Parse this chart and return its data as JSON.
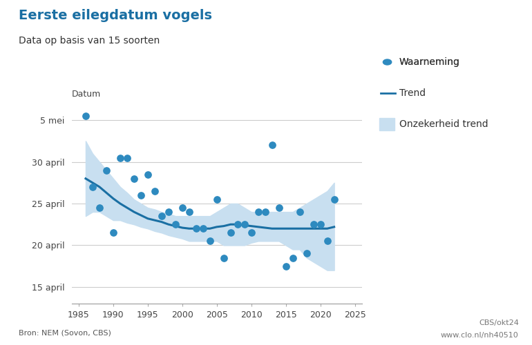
{
  "title": "Eerste eilegdatum vogels",
  "subtitle": "Data op basis van 15 soorten",
  "ylabel_label": "Datum",
  "source": "Bron: NEM (Sovon, CBS)",
  "source_right1": "CBS/okt24",
  "source_right2": "www.clo.nl/nh40510",
  "legend_labels": [
    "Waarneming",
    "Trend",
    "Onzekerheid trend"
  ],
  "dot_color": "#2e8abf",
  "trend_color": "#1a6fa3",
  "uncertainty_color": "#c8dff0",
  "ytick_labels": [
    "15 april",
    "20 april",
    "25 april",
    "30 april",
    "5 mei"
  ],
  "ytick_values": [
    15,
    20,
    25,
    30,
    35
  ],
  "xlim": [
    1984,
    2026
  ],
  "ylim": [
    13,
    37
  ],
  "observations": [
    [
      1986,
      35.5
    ],
    [
      1987,
      27.0
    ],
    [
      1988,
      24.5
    ],
    [
      1989,
      29.0
    ],
    [
      1990,
      21.5
    ],
    [
      1991,
      30.5
    ],
    [
      1992,
      30.5
    ],
    [
      1993,
      28.0
    ],
    [
      1994,
      26.0
    ],
    [
      1995,
      28.5
    ],
    [
      1996,
      26.5
    ],
    [
      1997,
      23.5
    ],
    [
      1998,
      24.0
    ],
    [
      1999,
      22.5
    ],
    [
      2000,
      24.5
    ],
    [
      2001,
      24.0
    ],
    [
      2002,
      22.0
    ],
    [
      2003,
      22.0
    ],
    [
      2004,
      20.5
    ],
    [
      2005,
      25.5
    ],
    [
      2006,
      18.5
    ],
    [
      2007,
      21.5
    ],
    [
      2008,
      22.5
    ],
    [
      2009,
      22.5
    ],
    [
      2010,
      21.5
    ],
    [
      2011,
      24.0
    ],
    [
      2012,
      24.0
    ],
    [
      2013,
      32.0
    ],
    [
      2014,
      24.5
    ],
    [
      2015,
      17.5
    ],
    [
      2016,
      18.5
    ],
    [
      2017,
      24.0
    ],
    [
      2018,
      19.0
    ],
    [
      2019,
      22.5
    ],
    [
      2020,
      22.5
    ],
    [
      2021,
      20.5
    ],
    [
      2022,
      25.5
    ]
  ],
  "trend": [
    [
      1986,
      28.0
    ],
    [
      1987,
      27.5
    ],
    [
      1988,
      27.0
    ],
    [
      1989,
      26.3
    ],
    [
      1990,
      25.6
    ],
    [
      1991,
      25.0
    ],
    [
      1992,
      24.5
    ],
    [
      1993,
      24.0
    ],
    [
      1994,
      23.6
    ],
    [
      1995,
      23.2
    ],
    [
      1996,
      23.0
    ],
    [
      1997,
      22.8
    ],
    [
      1998,
      22.5
    ],
    [
      1999,
      22.3
    ],
    [
      2000,
      22.1
    ],
    [
      2001,
      22.0
    ],
    [
      2002,
      22.0
    ],
    [
      2003,
      22.0
    ],
    [
      2004,
      22.0
    ],
    [
      2005,
      22.2
    ],
    [
      2006,
      22.3
    ],
    [
      2007,
      22.5
    ],
    [
      2008,
      22.5
    ],
    [
      2009,
      22.4
    ],
    [
      2010,
      22.3
    ],
    [
      2011,
      22.2
    ],
    [
      2012,
      22.1
    ],
    [
      2013,
      22.0
    ],
    [
      2014,
      22.0
    ],
    [
      2015,
      22.0
    ],
    [
      2016,
      22.0
    ],
    [
      2017,
      22.0
    ],
    [
      2018,
      22.0
    ],
    [
      2019,
      22.0
    ],
    [
      2020,
      22.0
    ],
    [
      2021,
      22.0
    ],
    [
      2022,
      22.2
    ]
  ],
  "uncertainty_upper": [
    [
      1986,
      32.5
    ],
    [
      1987,
      31.0
    ],
    [
      1988,
      30.0
    ],
    [
      1989,
      29.0
    ],
    [
      1990,
      28.0
    ],
    [
      1991,
      27.0
    ],
    [
      1992,
      26.3
    ],
    [
      1993,
      25.5
    ],
    [
      1994,
      25.0
    ],
    [
      1995,
      24.5
    ],
    [
      1996,
      24.3
    ],
    [
      1997,
      24.0
    ],
    [
      1998,
      23.8
    ],
    [
      1999,
      23.5
    ],
    [
      2000,
      23.5
    ],
    [
      2001,
      23.5
    ],
    [
      2002,
      23.5
    ],
    [
      2003,
      23.5
    ],
    [
      2004,
      23.5
    ],
    [
      2005,
      24.0
    ],
    [
      2006,
      24.5
    ],
    [
      2007,
      25.0
    ],
    [
      2008,
      25.0
    ],
    [
      2009,
      24.5
    ],
    [
      2010,
      24.0
    ],
    [
      2011,
      24.0
    ],
    [
      2012,
      24.0
    ],
    [
      2013,
      24.0
    ],
    [
      2014,
      24.0
    ],
    [
      2015,
      24.0
    ],
    [
      2016,
      24.0
    ],
    [
      2017,
      24.5
    ],
    [
      2018,
      25.0
    ],
    [
      2019,
      25.5
    ],
    [
      2020,
      26.0
    ],
    [
      2021,
      26.5
    ],
    [
      2022,
      27.5
    ]
  ],
  "uncertainty_lower": [
    [
      1986,
      23.5
    ],
    [
      1987,
      24.0
    ],
    [
      1988,
      24.0
    ],
    [
      1989,
      23.5
    ],
    [
      1990,
      23.0
    ],
    [
      1991,
      23.0
    ],
    [
      1992,
      22.7
    ],
    [
      1993,
      22.5
    ],
    [
      1994,
      22.2
    ],
    [
      1995,
      22.0
    ],
    [
      1996,
      21.7
    ],
    [
      1997,
      21.5
    ],
    [
      1998,
      21.2
    ],
    [
      1999,
      21.0
    ],
    [
      2000,
      20.8
    ],
    [
      2001,
      20.5
    ],
    [
      2002,
      20.5
    ],
    [
      2003,
      20.5
    ],
    [
      2004,
      20.5
    ],
    [
      2005,
      20.5
    ],
    [
      2006,
      20.0
    ],
    [
      2007,
      20.0
    ],
    [
      2008,
      20.0
    ],
    [
      2009,
      20.0
    ],
    [
      2010,
      20.3
    ],
    [
      2011,
      20.5
    ],
    [
      2012,
      20.5
    ],
    [
      2013,
      20.5
    ],
    [
      2014,
      20.5
    ],
    [
      2015,
      20.0
    ],
    [
      2016,
      19.5
    ],
    [
      2017,
      19.5
    ],
    [
      2018,
      18.5
    ],
    [
      2019,
      18.0
    ],
    [
      2020,
      17.5
    ],
    [
      2021,
      17.0
    ],
    [
      2022,
      17.0
    ]
  ]
}
